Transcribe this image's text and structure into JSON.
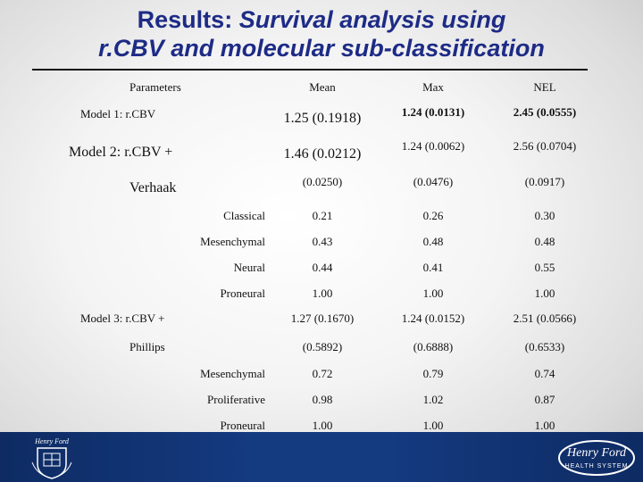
{
  "title": {
    "line1_plain": "Results: ",
    "line1_italic": "Survival analysis using",
    "line2": "r.CBV and molecular sub-classification"
  },
  "table": {
    "headers": [
      "Parameters",
      "Mean",
      "Max",
      "NEL"
    ],
    "model1": {
      "label": "Model 1:  r.CBV",
      "mean": "1.25 (0.1918)",
      "max": "1.24 (0.0131)",
      "nel": "2.45 (0.0555)"
    },
    "model2": {
      "label": "Model 2:  r.CBV +",
      "label2": "Verhaak",
      "mean": "1.46 (0.0212)",
      "max": "1.24 (0.0062)",
      "nel": "2.56 (0.0704)",
      "p_mean": "(0.0250)",
      "p_max": "(0.0476)",
      "p_nel": "(0.0917)"
    },
    "verhaak_rows": [
      {
        "label": "Classical",
        "mean": "0.21",
        "max": "0.26",
        "nel": "0.30"
      },
      {
        "label": "Mesenchymal",
        "mean": "0.43",
        "max": "0.48",
        "nel": "0.48"
      },
      {
        "label": "Neural",
        "mean": "0.44",
        "max": "0.41",
        "nel": "0.55"
      },
      {
        "label": "Proneural",
        "mean": "1.00",
        "max": "1.00",
        "nel": "1.00"
      }
    ],
    "model3": {
      "label": "Model 3:  r.CBV +",
      "label2": "Phillips",
      "mean": "1.27 (0.1670)",
      "max": "1.24 (0.0152)",
      "nel": "2.51 (0.0566)",
      "p_mean": "(0.5892)",
      "p_max": "(0.6888)",
      "p_nel": "(0.6533)"
    },
    "phillips_rows": [
      {
        "label": "Mesenchymal",
        "mean": "0.72",
        "max": "0.79",
        "nel": "0.74"
      },
      {
        "label": "Proliferative",
        "mean": "0.98",
        "max": "1.02",
        "nel": "0.87"
      },
      {
        "label": "Proneural",
        "mean": "1.00",
        "max": "1.00",
        "nel": "1.00"
      }
    ]
  },
  "footer": {
    "left_logo_text": "Henry Ford",
    "right_logo_text": "Henry Ford",
    "right_logo_subtext": "HEALTH SYSTEM",
    "colors": {
      "band": "#143a80",
      "title": "#1d2b86"
    }
  }
}
